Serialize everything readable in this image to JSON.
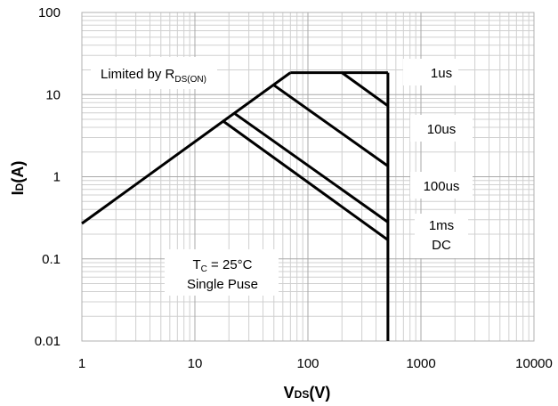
{
  "chart_data": {
    "type": "line",
    "title": "",
    "xlabel": {
      "main": "V",
      "sub": "DS",
      "suffix": "(V)"
    },
    "ylabel": {
      "main": "I",
      "sub": "D",
      "suffix": "(A)"
    },
    "xscale": "log",
    "yscale": "log",
    "xlim": [
      1,
      10000
    ],
    "ylim": [
      0.01,
      100
    ],
    "grid": true,
    "x_ticks": [
      {
        "value": 1,
        "label": "1"
      },
      {
        "value": 10,
        "label": "10"
      },
      {
        "value": 100,
        "label": "100"
      },
      {
        "value": 1000,
        "label": "1000"
      },
      {
        "value": 10000,
        "label": "10000"
      }
    ],
    "y_ticks": [
      {
        "value": 0.01,
        "label": "0.01"
      },
      {
        "value": 0.1,
        "label": "0.1"
      },
      {
        "value": 1,
        "label": "1"
      },
      {
        "value": 10,
        "label": "10"
      },
      {
        "value": 100,
        "label": "100"
      }
    ],
    "series": [
      {
        "id": "rds-limit",
        "points": [
          [
            1,
            0.27
          ],
          [
            70,
            18.5
          ]
        ]
      },
      {
        "id": "current-limit",
        "points": [
          [
            70,
            18.5
          ],
          [
            510,
            18.5
          ]
        ]
      },
      {
        "id": "voltage-limit",
        "points": [
          [
            510,
            18.5
          ],
          [
            510,
            0.01
          ]
        ]
      },
      {
        "id": "1us",
        "points": [
          [
            200,
            18.5
          ],
          [
            510,
            7.3
          ]
        ]
      },
      {
        "id": "10us",
        "points": [
          [
            50,
            13
          ],
          [
            510,
            1.35
          ]
        ]
      },
      {
        "id": "100us",
        "points": [
          [
            22,
            6.0
          ],
          [
            510,
            0.28
          ]
        ]
      },
      {
        "id": "1ms-dc",
        "points": [
          [
            18,
            4.7
          ],
          [
            510,
            0.17
          ]
        ]
      }
    ],
    "annotations": {
      "rds_label": {
        "main": "Limited by R",
        "sub": "DS(ON)"
      },
      "curve_labels": [
        "1us",
        "10us",
        "100us",
        "1ms",
        "DC"
      ],
      "conditions": {
        "tc_main": "T",
        "tc_sub": "C",
        "tc_rest": " = 25°C",
        "pulse": "Single Puse"
      }
    }
  }
}
